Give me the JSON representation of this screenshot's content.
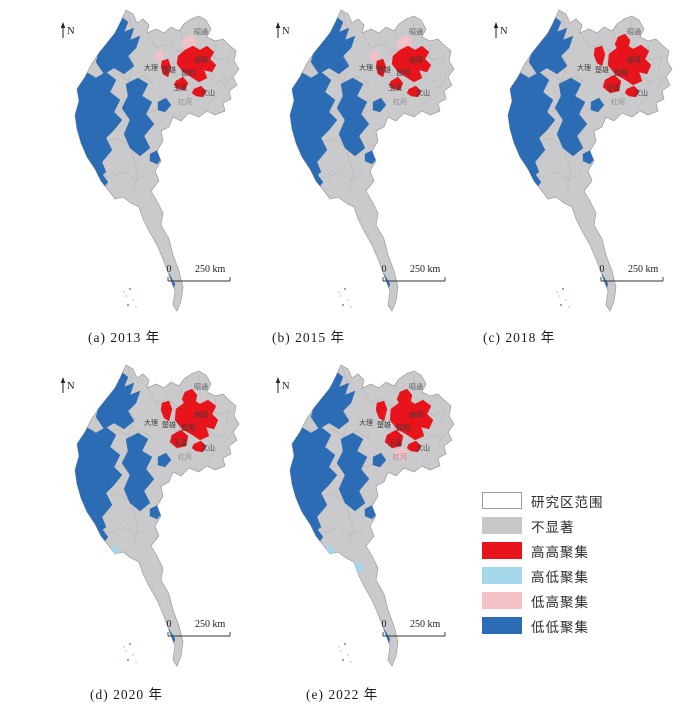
{
  "page": {
    "background": "#ffffff"
  },
  "figure": {
    "type": "lisa_cluster_maps",
    "panels": [
      {
        "id": "a",
        "year": "2013",
        "caption": "(a) 2013 年",
        "patches": [
          "lh_zhaotong",
          "lh_nw",
          "hh_dali_low",
          "hh_core_s",
          "hh_yuxi_s",
          "hh_wenshan"
        ]
      },
      {
        "id": "b",
        "year": "2015",
        "caption": "(b) 2015 年",
        "patches": [
          "lh_zhaotong",
          "lh_nw",
          "hh_dali_low",
          "hh_core_s",
          "hh_yuxi_s",
          "hh_wenshan"
        ]
      },
      {
        "id": "c",
        "year": "2018",
        "caption": "(c) 2018 年",
        "patches": [
          "hh_zhaotong",
          "hh_dali_high",
          "hh_core_l",
          "hh_yuxi",
          "hh_wenshan"
        ]
      },
      {
        "id": "d",
        "year": "2020",
        "caption": "(d) 2020 年",
        "patches": [
          "hh_zhaotong",
          "hh_dali_high",
          "hh_core_l",
          "hh_yuxi",
          "hh_wenshan",
          "hl_coast"
        ]
      },
      {
        "id": "e",
        "year": "2022",
        "caption": "(e) 2022 年",
        "patches": [
          "hh_zhaotong",
          "hh_dali_high",
          "hh_core_l",
          "hh_yuxi",
          "hh_wenshan",
          "lh_honghe",
          "hl_coast",
          "hl_delta"
        ]
      }
    ],
    "map_labels": [
      {
        "id": "zhaotong",
        "text": "昭通"
      },
      {
        "id": "dali",
        "text": "大理"
      },
      {
        "id": "chuxiong",
        "text": "楚雄"
      },
      {
        "id": "kunming",
        "text": "昆明"
      },
      {
        "id": "qujing",
        "text": "曲靖"
      },
      {
        "id": "yuxi",
        "text": "玉溪"
      },
      {
        "id": "wenshan",
        "text": "文山"
      },
      {
        "id": "honghe",
        "text": "红河"
      }
    ],
    "north_label": "N",
    "scale_bar": {
      "zero": "0",
      "distance": "250 km"
    },
    "legend": {
      "items": [
        {
          "key": "study_area",
          "label": "研究区范围",
          "color": "#ffffff",
          "border": "#9b9b9e"
        },
        {
          "key": "not_significant",
          "label": "不显著",
          "color": "#c7c7c9",
          "border": ""
        },
        {
          "key": "high_high",
          "label": "高高聚集",
          "color": "#e7141c",
          "border": ""
        },
        {
          "key": "high_low",
          "label": "高低聚集",
          "color": "#a5d7ea",
          "border": ""
        },
        {
          "key": "low_high",
          "label": "低高聚集",
          "color": "#f4c2c6",
          "border": ""
        },
        {
          "key": "low_low",
          "label": "低低聚集",
          "color": "#2b6cb4",
          "border": ""
        }
      ]
    },
    "cluster_colors": {
      "not_significant": "#cacacc",
      "high_high": "#e7141c",
      "high_low": "#a5d7ea",
      "low_high": "#f4c2c6",
      "low_low": "#2b6cb4",
      "study_area_fill": "#ffffff",
      "study_area_border": "#9b9b9e",
      "inner_boundary": "#b5b5b8"
    }
  }
}
